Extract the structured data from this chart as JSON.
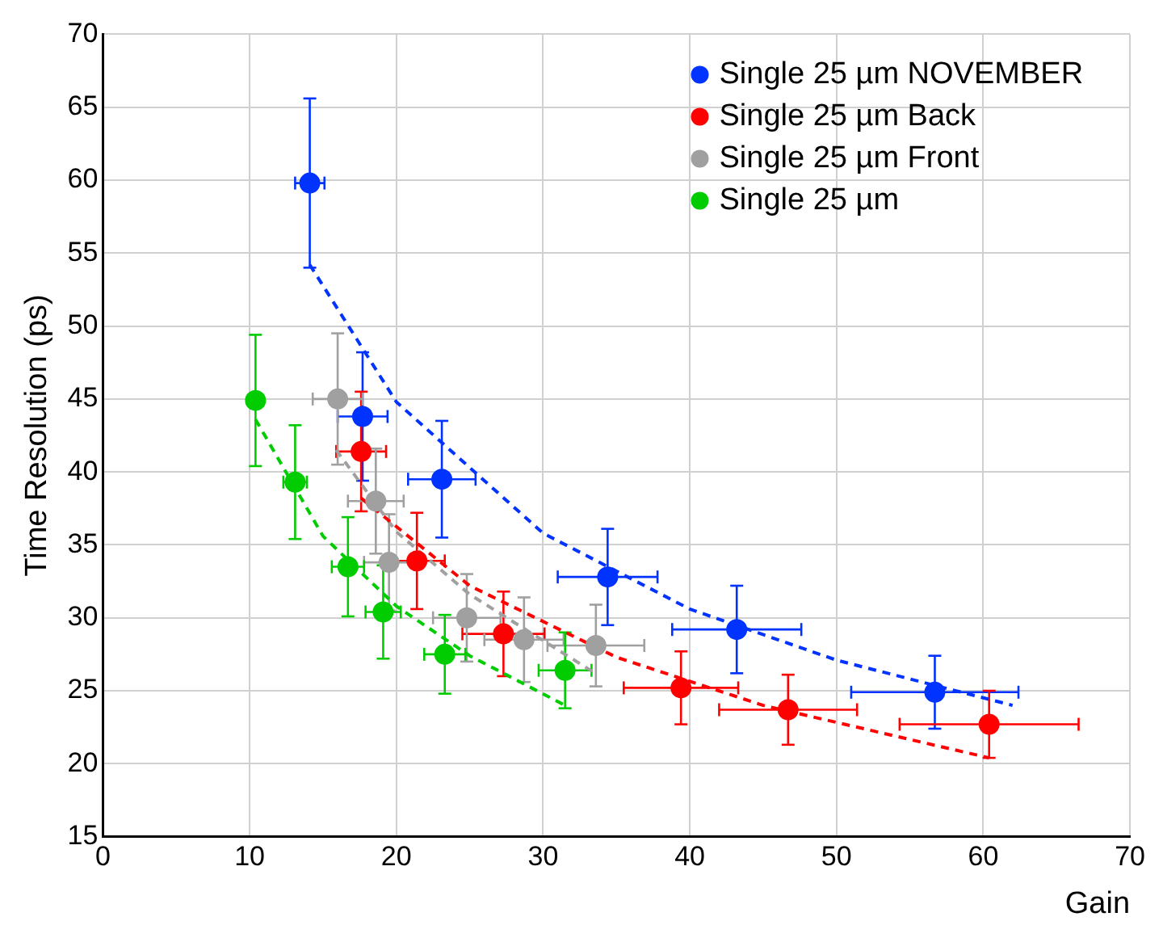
{
  "chart_data": {
    "type": "scatter",
    "xlabel": "Gain",
    "ylabel": "Time Resolution (ps)",
    "xlim": [
      0,
      70
    ],
    "xticks": [
      0,
      10,
      20,
      30,
      40,
      50,
      60,
      70
    ],
    "ylim": [
      15,
      70
    ],
    "yticks": [
      15,
      20,
      25,
      30,
      35,
      40,
      45,
      50,
      55,
      60,
      65,
      70
    ],
    "grid": true,
    "legend": "top right",
    "marker": "circle",
    "series": [
      {
        "name": "Single 25 µm NOVEMBER",
        "color": "#0033ff",
        "x": [
          14.1,
          17.7,
          23.1,
          34.4,
          43.2,
          56.7
        ],
        "values": [
          59.8,
          43.8,
          39.5,
          32.8,
          29.2,
          24.9
        ],
        "errors": [
          5.8,
          4.4,
          4.0,
          3.3,
          3.0,
          2.5
        ],
        "xerrors": [
          1.0,
          1.7,
          2.3,
          3.4,
          4.4,
          5.7
        ]
      },
      {
        "name": "Single 25 µm Back",
        "color": "#ff0000",
        "x": [
          17.6,
          21.4,
          27.3,
          39.4,
          46.7,
          60.4
        ],
        "values": [
          41.4,
          33.9,
          28.9,
          25.2,
          23.7,
          22.7
        ],
        "errors": [
          4.1,
          3.3,
          2.9,
          2.5,
          2.4,
          2.3
        ],
        "xerrors": [
          1.7,
          1.9,
          2.8,
          3.9,
          4.7,
          6.1
        ]
      },
      {
        "name": "Single 25 µm Front",
        "color": "#a0a0a0",
        "x": [
          16.0,
          18.6,
          19.5,
          24.8,
          28.7,
          33.6
        ],
        "values": [
          45.0,
          38.0,
          33.8,
          30.0,
          28.5,
          28.1
        ],
        "errors": [
          4.5,
          3.6,
          3.3,
          3.0,
          2.9,
          2.8
        ],
        "xerrors": [
          1.7,
          1.9,
          1.7,
          2.3,
          2.7,
          3.3
        ]
      },
      {
        "name": "Single 25 µm",
        "color": "#00cc00",
        "x": [
          10.4,
          13.1,
          16.7,
          19.1,
          23.3,
          31.5
        ],
        "values": [
          44.9,
          39.3,
          33.5,
          30.4,
          27.5,
          26.4
        ],
        "errors": [
          4.5,
          3.9,
          3.4,
          3.2,
          2.7,
          2.6
        ],
        "xerrors": [
          0.5,
          0.8,
          1.1,
          1.2,
          1.4,
          1.8
        ]
      },
      {
        "type": "line",
        "color": "#0033ff",
        "line_style": "dashed",
        "marker": "none",
        "x": [
          14.1,
          20,
          30,
          40,
          50,
          62
        ],
        "values": [
          54.2,
          44.8,
          35.8,
          30.6,
          27.1,
          24.0
        ]
      },
      {
        "type": "line",
        "color": "#ff0000",
        "line_style": "dashed",
        "marker": "none",
        "x": [
          17.6,
          25,
          35,
          45,
          60.4
        ],
        "values": [
          38.2,
          32.2,
          27.3,
          24.0,
          20.4
        ]
      },
      {
        "type": "line",
        "color": "#a0a0a0",
        "line_style": "dashed",
        "marker": "none",
        "x": [
          15.9,
          20,
          25,
          33.4
        ],
        "values": [
          41.5,
          35.9,
          31.6,
          26.3
        ]
      },
      {
        "type": "line",
        "color": "#00cc00",
        "line_style": "dashed",
        "marker": "none",
        "x": [
          10.4,
          15,
          20,
          25,
          31.5
        ],
        "values": [
          43.6,
          35.6,
          30.8,
          27.4,
          24.0
        ]
      }
    ]
  }
}
